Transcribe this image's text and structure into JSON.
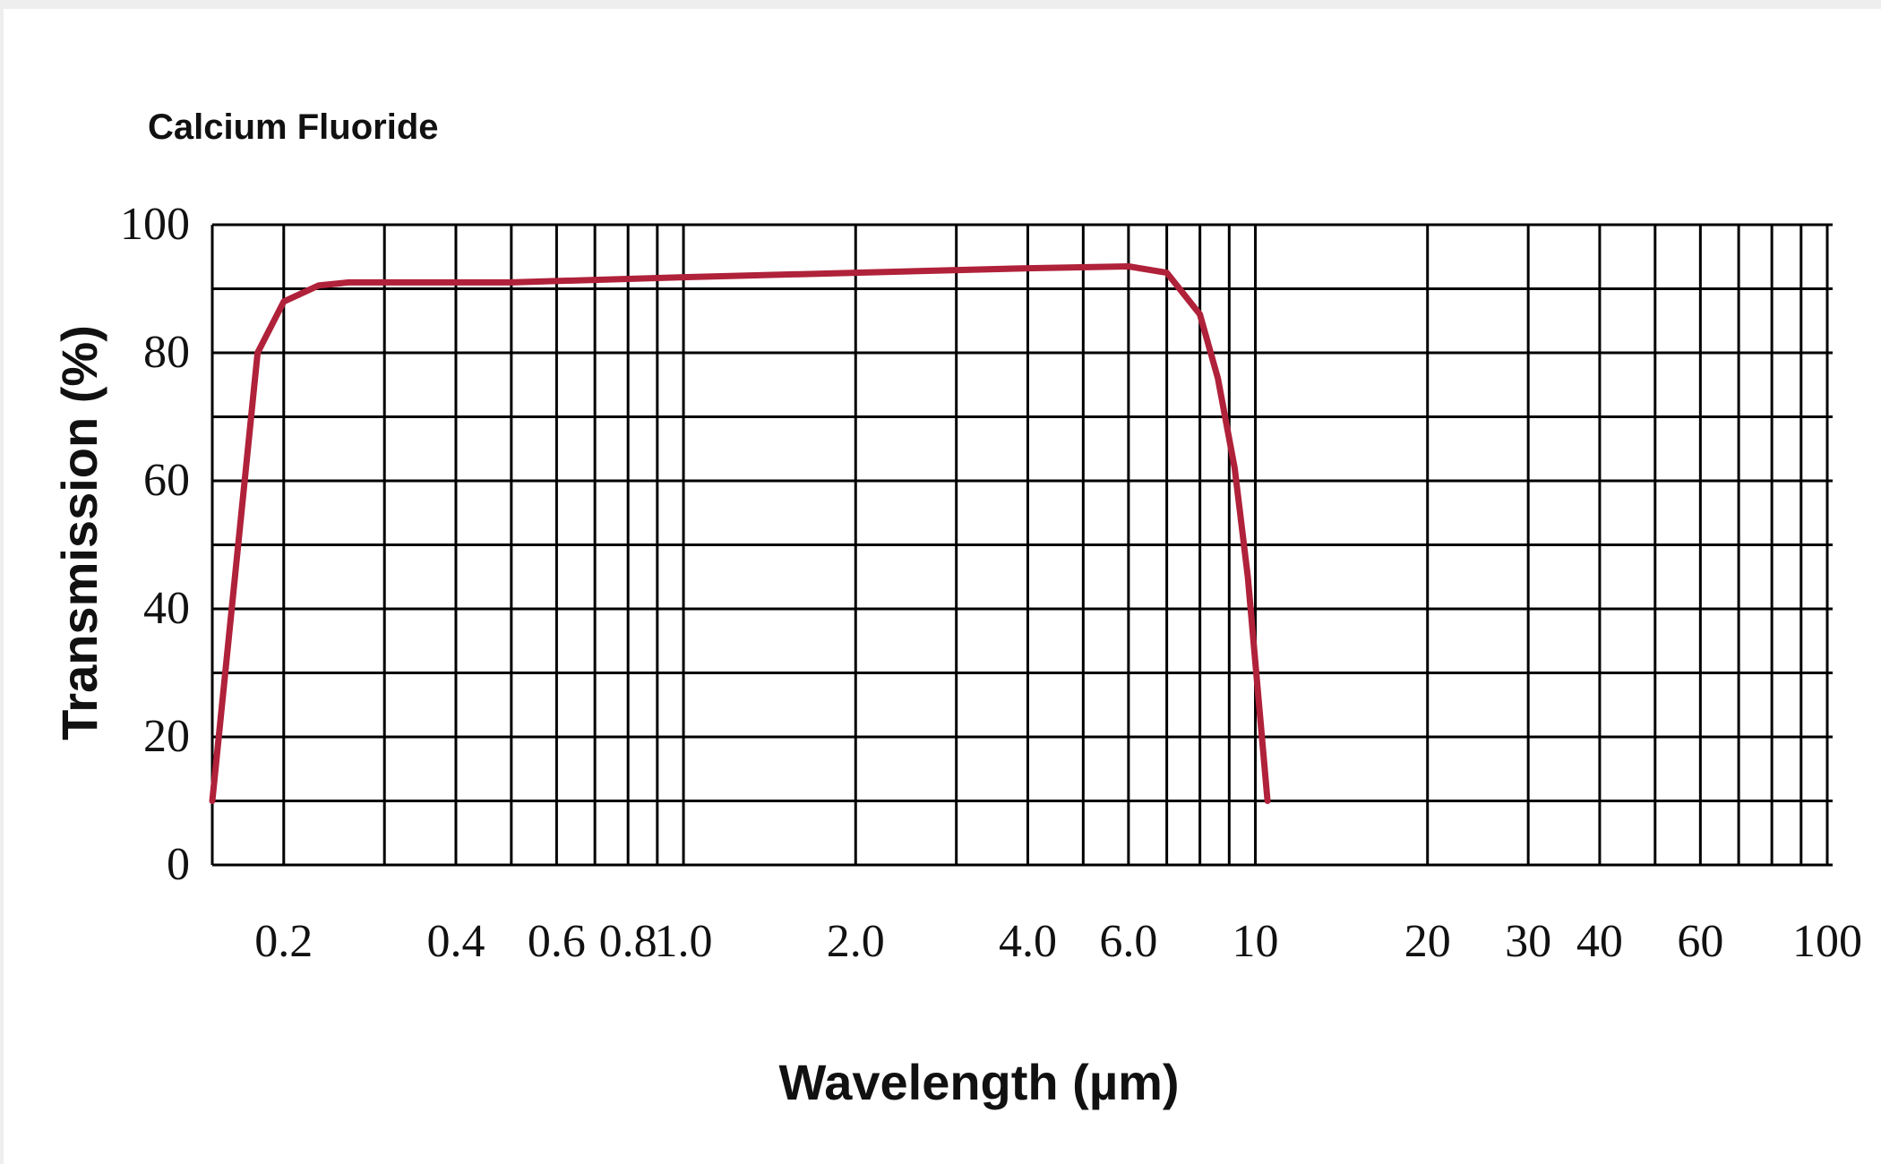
{
  "chart_data": {
    "type": "line",
    "title": "Calcium Fluoride",
    "xlabel": "Wavelength (µm)",
    "ylabel": "Transmission (%)",
    "x_scale": "log",
    "xlim": [
      0.15,
      100
    ],
    "ylim": [
      0,
      100
    ],
    "grid": true,
    "x_ticks": [
      {
        "value": 0.2,
        "label": "0.2"
      },
      {
        "value": 0.4,
        "label": "0.4"
      },
      {
        "value": 0.6,
        "label": "0.6"
      },
      {
        "value": 0.8,
        "label": "0.8"
      },
      {
        "value": 1.0,
        "label": "1.0"
      },
      {
        "value": 2.0,
        "label": "2.0"
      },
      {
        "value": 4.0,
        "label": "4.0"
      },
      {
        "value": 6.0,
        "label": "6.0"
      },
      {
        "value": 10,
        "label": "10"
      },
      {
        "value": 20,
        "label": "20"
      },
      {
        "value": 30,
        "label": "30"
      },
      {
        "value": 40,
        "label": "40"
      },
      {
        "value": 60,
        "label": "60"
      },
      {
        "value": 100,
        "label": "100"
      }
    ],
    "y_ticks": [
      {
        "value": 0,
        "label": "0"
      },
      {
        "value": 20,
        "label": "20"
      },
      {
        "value": 40,
        "label": "40"
      },
      {
        "value": 60,
        "label": "60"
      },
      {
        "value": 80,
        "label": "80"
      },
      {
        "value": 100,
        "label": "100"
      }
    ],
    "x_gridlines": [
      0.15,
      0.2,
      0.3,
      0.4,
      0.5,
      0.6,
      0.7,
      0.8,
      0.9,
      1.0,
      2.0,
      3.0,
      4.0,
      5.0,
      6.0,
      7.0,
      8.0,
      9.0,
      10,
      20,
      30,
      40,
      50,
      60,
      70,
      80,
      90,
      100
    ],
    "y_gridlines": [
      0,
      10,
      20,
      30,
      40,
      50,
      60,
      70,
      80,
      90,
      100
    ],
    "series": [
      {
        "color": "#b0213a",
        "x": [
          0.15,
          0.18,
          0.2,
          0.23,
          0.26,
          0.3,
          0.5,
          1.0,
          2.0,
          4.0,
          6.0,
          7.0,
          8.0,
          8.6,
          9.2,
          9.7,
          10.5
        ],
        "y": [
          10,
          80,
          88,
          90.5,
          91,
          91,
          91,
          91.8,
          92.5,
          93.2,
          93.5,
          92.5,
          86,
          76,
          62,
          45,
          10
        ]
      }
    ]
  }
}
